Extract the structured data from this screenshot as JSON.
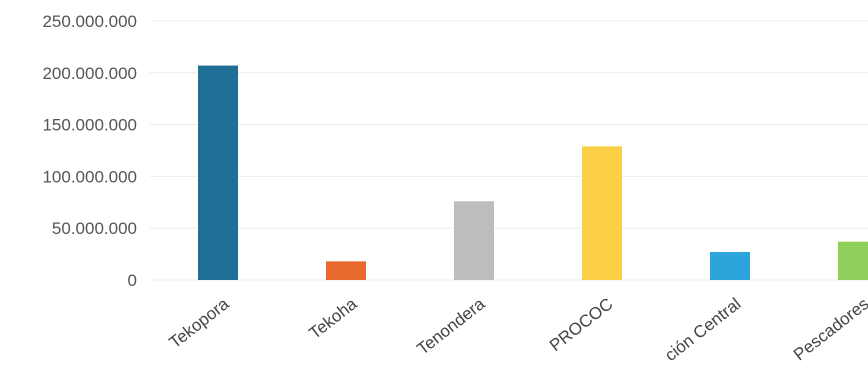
{
  "chart_data": {
    "type": "bar",
    "categories": [
      "Tekopora",
      "Tekoha",
      "Tenondera",
      "PROCOC",
      "ción Central",
      "Pescadores"
    ],
    "values": [
      207000000,
      18000000,
      76000000,
      129000000,
      27000000,
      37000000
    ],
    "colors": [
      "#1f6e96",
      "#e8692c",
      "#bdbdbd",
      "#fbd046",
      "#2ca4dc",
      "#8fd05a"
    ],
    "yticks": [
      "0",
      "50.000.000",
      "100.000.000",
      "150.000.000",
      "200.000.000",
      "250.000.000"
    ],
    "ylim": [
      0,
      250000000
    ],
    "grid": true,
    "legend": "none"
  }
}
